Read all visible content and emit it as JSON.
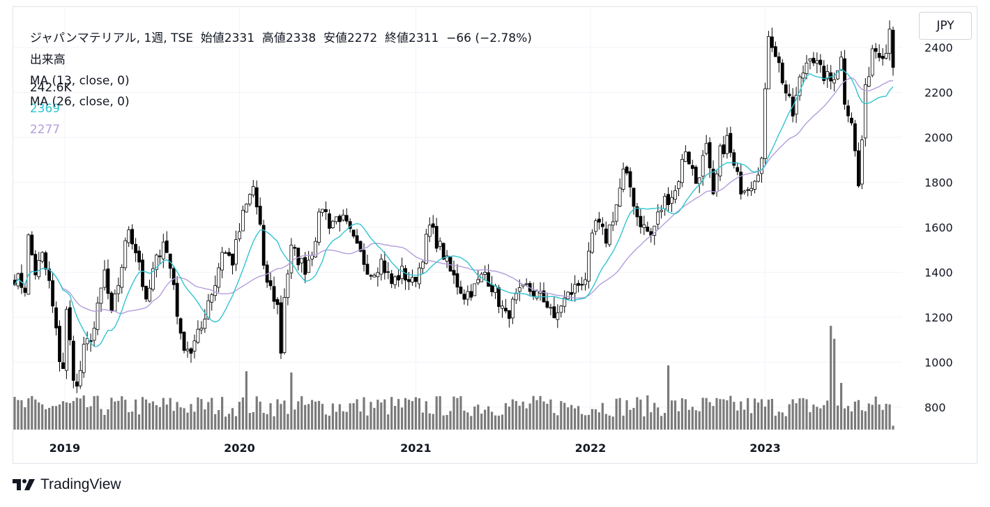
{
  "legend": {
    "symbol_line": "ジャパンマテリアル, 1週, TSE  始値2331  高値2338  安値2272  終値2311  −66 (−2.78%)",
    "volume_label": "出来高",
    "volume_value": "242.6K",
    "ma13_label": "MA (13, close, 0)",
    "ma13_value": "2369",
    "ma26_label": "MA (26, close, 0)",
    "ma26_value": "2277"
  },
  "currency_button": "JPY",
  "brand": {
    "name": "TradingView",
    "icon": "tradingview-logo-icon"
  },
  "colors": {
    "ma13": "#2fc4d1",
    "ma26": "#b39ddb",
    "volume": "#7a7a7a",
    "candle": "#000000",
    "grid": "#f0f3fa"
  },
  "chart_data": {
    "type": "candlestick",
    "interval": "1週",
    "symbol": "ジャパンマテリアル",
    "exchange": "TSE",
    "currency": "JPY",
    "y_ticks": [
      800,
      1000,
      1200,
      1400,
      1600,
      1800,
      2000,
      2200,
      2400
    ],
    "ylim": [
      700,
      2580
    ],
    "x_ticks": [
      "2019",
      "2020",
      "2021",
      "2022",
      "2023"
    ],
    "x_tick_weeks": [
      14.5,
      65,
      116,
      166.5,
      217
    ],
    "week_count": 255,
    "anchors": [
      [
        0,
        1380
      ],
      [
        3,
        1330
      ],
      [
        4,
        1550
      ],
      [
        6,
        1400
      ],
      [
        8,
        1470
      ],
      [
        10,
        1350
      ],
      [
        13,
        1020
      ],
      [
        14,
        980
      ],
      [
        15,
        1220
      ],
      [
        17,
        950
      ],
      [
        18,
        880
      ],
      [
        20,
        1050
      ],
      [
        23,
        1150
      ],
      [
        26,
        1400
      ],
      [
        28,
        1200
      ],
      [
        30,
        1350
      ],
      [
        33,
        1600
      ],
      [
        36,
        1450
      ],
      [
        38,
        1250
      ],
      [
        40,
        1400
      ],
      [
        43,
        1550
      ],
      [
        46,
        1350
      ],
      [
        48,
        1100
      ],
      [
        51,
        1050
      ],
      [
        54,
        1150
      ],
      [
        56,
        1280
      ],
      [
        58,
        1350
      ],
      [
        60,
        1500
      ],
      [
        63,
        1450
      ],
      [
        66,
        1650
      ],
      [
        69,
        1780
      ],
      [
        71,
        1600
      ],
      [
        72,
        1400
      ],
      [
        76,
        1250
      ],
      [
        77,
        1050
      ],
      [
        78,
        1300
      ],
      [
        80,
        1500
      ],
      [
        84,
        1420
      ],
      [
        86,
        1500
      ],
      [
        89,
        1700
      ],
      [
        91,
        1620
      ],
      [
        94,
        1650
      ],
      [
        96,
        1600
      ],
      [
        99,
        1500
      ],
      [
        103,
        1400
      ],
      [
        106,
        1450
      ],
      [
        109,
        1350
      ],
      [
        112,
        1400
      ],
      [
        115,
        1350
      ],
      [
        117,
        1420
      ],
      [
        120,
        1600
      ],
      [
        124,
        1480
      ],
      [
        126,
        1400
      ],
      [
        130,
        1300
      ],
      [
        133,
        1330
      ],
      [
        136,
        1400
      ],
      [
        139,
        1310
      ],
      [
        142,
        1200
      ],
      [
        145,
        1280
      ],
      [
        148,
        1330
      ],
      [
        151,
        1300
      ],
      [
        155,
        1250
      ],
      [
        156,
        1170
      ],
      [
        158,
        1260
      ],
      [
        162,
        1330
      ],
      [
        165,
        1380
      ],
      [
        168,
        1620
      ],
      [
        171,
        1550
      ],
      [
        174,
        1700
      ],
      [
        176,
        1840
      ],
      [
        178,
        1780
      ],
      [
        180,
        1650
      ],
      [
        182,
        1600
      ],
      [
        184,
        1560
      ],
      [
        186,
        1650
      ],
      [
        188,
        1720
      ],
      [
        191,
        1760
      ],
      [
        194,
        1950
      ],
      [
        197,
        1800
      ],
      [
        200,
        1950
      ],
      [
        202,
        1720
      ],
      [
        204,
        1930
      ],
      [
        206,
        1990
      ],
      [
        208,
        1860
      ],
      [
        210,
        1780
      ],
      [
        213,
        1800
      ],
      [
        216,
        1900
      ],
      [
        218,
        2470
      ],
      [
        220,
        2380
      ],
      [
        223,
        2200
      ],
      [
        225,
        2100
      ],
      [
        227,
        2250
      ],
      [
        230,
        2380
      ],
      [
        233,
        2290
      ],
      [
        236,
        2250
      ],
      [
        239,
        2350
      ],
      [
        240,
        2170
      ],
      [
        242,
        2080
      ],
      [
        244,
        1780
      ],
      [
        246,
        2200
      ],
      [
        248,
        2400
      ],
      [
        252,
        2380
      ],
      [
        253,
        2510
      ],
      [
        254,
        2311
      ]
    ],
    "volume": {
      "base": 200,
      "spikes": [
        {
          "week": 236,
          "value": 1600
        },
        {
          "week": 237,
          "value": 1400
        },
        {
          "week": 189,
          "value": 990
        },
        {
          "week": 67,
          "value": 900
        },
        {
          "week": 80,
          "value": 880
        },
        {
          "week": 239,
          "value": 720
        }
      ]
    },
    "ma_periods": [
      13,
      26
    ]
  }
}
